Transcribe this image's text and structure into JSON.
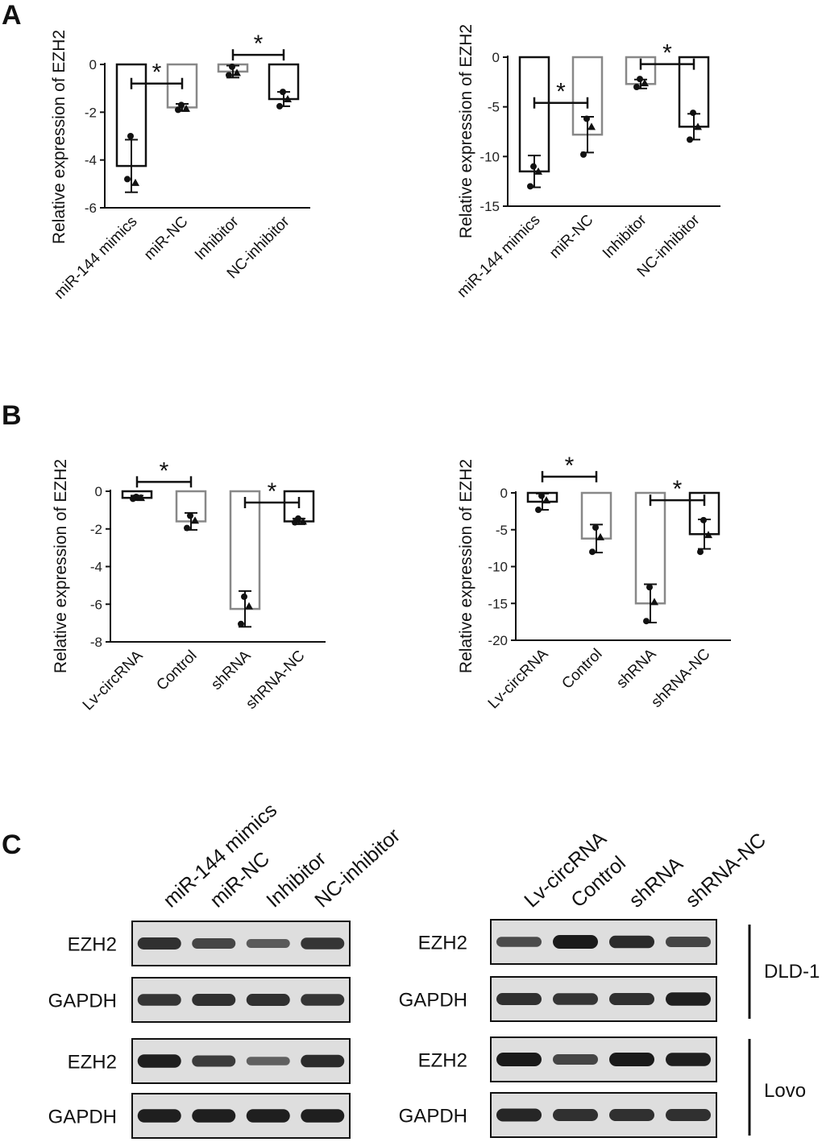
{
  "panel_labels": [
    "A",
    "B",
    "C"
  ],
  "chart_data": [
    {
      "id": "A-left",
      "type": "bar",
      "panel": "A",
      "ylabel": "Relative expression of EZH2",
      "ylim": [
        -6,
        0
      ],
      "yticks": [
        0,
        -2,
        -4,
        -6
      ],
      "categories": [
        "miR-144 mimics",
        "miR-NC",
        "Inhibitor",
        "NC-inhibitor"
      ],
      "values": [
        -4.25,
        -1.8,
        -0.3,
        -1.45
      ],
      "errors": [
        1.1,
        0.15,
        0.25,
        0.3
      ],
      "points": [
        [
          -3.0,
          -4.95,
          -4.8
        ],
        [
          -1.7,
          -1.85,
          -1.9
        ],
        [
          -0.1,
          -0.35,
          -0.45
        ],
        [
          -1.15,
          -1.45,
          -1.75
        ]
      ],
      "bar_colors": [
        "#111111",
        "#888888",
        "#888888",
        "#111111"
      ],
      "significance": [
        {
          "from": 0,
          "to": 1,
          "label": "*",
          "y": -0.8
        },
        {
          "from": 2,
          "to": 3,
          "label": "*",
          "y": 0.4
        }
      ]
    },
    {
      "id": "A-right",
      "type": "bar",
      "panel": "A",
      "ylabel": "Relative expression of EZH2",
      "ylim": [
        -15,
        0
      ],
      "yticks": [
        0,
        -5,
        -10,
        -15
      ],
      "categories": [
        "miR-144 mimics",
        "miR-NC",
        "Inhibitor",
        "NC-inhibitor"
      ],
      "values": [
        -11.5,
        -7.8,
        -2.7,
        -7.0
      ],
      "errors": [
        1.6,
        1.8,
        0.45,
        1.3
      ],
      "points": [
        [
          -11.0,
          -11.5,
          -13.0
        ],
        [
          -6.2,
          -7.0,
          -9.8
        ],
        [
          -2.2,
          -2.6,
          -3.0
        ],
        [
          -5.6,
          -7.0,
          -8.3
        ]
      ],
      "bar_colors": [
        "#111111",
        "#888888",
        "#888888",
        "#111111"
      ],
      "significance": [
        {
          "from": 0,
          "to": 1,
          "label": "*",
          "y": -4.6
        },
        {
          "from": 2,
          "to": 3,
          "label": "*",
          "y": -0.7
        }
      ]
    },
    {
      "id": "B-left",
      "type": "bar",
      "panel": "B",
      "ylabel": "Relative expression of EZH2",
      "ylim": [
        -8,
        0
      ],
      "yticks": [
        0,
        -2,
        -4,
        -6,
        -8
      ],
      "categories": [
        "Lv-circRNA",
        "Control",
        "shRNA",
        "shRNA-NC"
      ],
      "values": [
        -0.35,
        -1.6,
        -6.25,
        -1.6
      ],
      "errors": [
        0.12,
        0.45,
        0.95,
        0.15
      ],
      "points": [
        [
          -0.3,
          -0.35,
          -0.4
        ],
        [
          -1.3,
          -1.55,
          -1.95
        ],
        [
          -5.6,
          -6.1,
          -7.05
        ],
        [
          -1.45,
          -1.6,
          -1.65
        ]
      ],
      "bar_colors": [
        "#111111",
        "#888888",
        "#888888",
        "#111111"
      ],
      "significance": [
        {
          "from": 0,
          "to": 1,
          "label": "*",
          "y": 0.5
        },
        {
          "from": 2,
          "to": 3,
          "label": "*",
          "y": -0.6
        }
      ]
    },
    {
      "id": "B-right",
      "type": "bar",
      "panel": "B",
      "ylabel": "Relative expression of EZH2",
      "ylim": [
        -20,
        0
      ],
      "yticks": [
        0,
        -5,
        -10,
        -15,
        -20
      ],
      "categories": [
        "Lv-circRNA",
        "Control",
        "shRNA",
        "shRNA-NC"
      ],
      "values": [
        -1.2,
        -6.2,
        -15.0,
        -5.6
      ],
      "errors": [
        1.1,
        1.9,
        2.6,
        2.0
      ],
      "points": [
        [
          -0.4,
          -1.0,
          -2.3
        ],
        [
          -4.7,
          -6.0,
          -8.0
        ],
        [
          -12.8,
          -14.8,
          -17.4
        ],
        [
          -3.7,
          -5.7,
          -8.0
        ]
      ],
      "bar_colors": [
        "#111111",
        "#888888",
        "#888888",
        "#111111"
      ],
      "significance": [
        {
          "from": 0,
          "to": 1,
          "label": "*",
          "y": 2.2
        },
        {
          "from": 2,
          "to": 3,
          "label": "*",
          "y": -1.0
        }
      ]
    }
  ],
  "blots": {
    "left_lanes": [
      "miR-144 mimics",
      "miR-NC",
      "Inhibitor",
      "NC-inhibitor"
    ],
    "right_lanes": [
      "Lv-circRNA",
      "Control",
      "shRNA",
      "shRNA-NC"
    ],
    "rows": [
      "EZH2",
      "GAPDH",
      "EZH2",
      "GAPDH"
    ],
    "cell_lines": [
      "DLD-1",
      "Lovo"
    ],
    "band_intensity": {
      "left": [
        [
          0.8,
          0.6,
          0.4,
          0.75
        ],
        [
          0.75,
          0.8,
          0.8,
          0.75
        ],
        [
          0.95,
          0.7,
          0.35,
          0.85
        ],
        [
          0.95,
          0.95,
          0.95,
          0.95
        ]
      ],
      "right": [
        [
          0.55,
          1.0,
          0.85,
          0.6
        ],
        [
          0.8,
          0.75,
          0.8,
          0.95
        ],
        [
          1.0,
          0.6,
          1.0,
          0.95
        ],
        [
          0.9,
          0.8,
          0.8,
          0.8
        ]
      ]
    }
  },
  "colors": {
    "axis": "#111111",
    "black_bar": "#111111",
    "gray_bar": "#888888",
    "blot_bg": "#dedede",
    "band": "#1a1a1a"
  }
}
